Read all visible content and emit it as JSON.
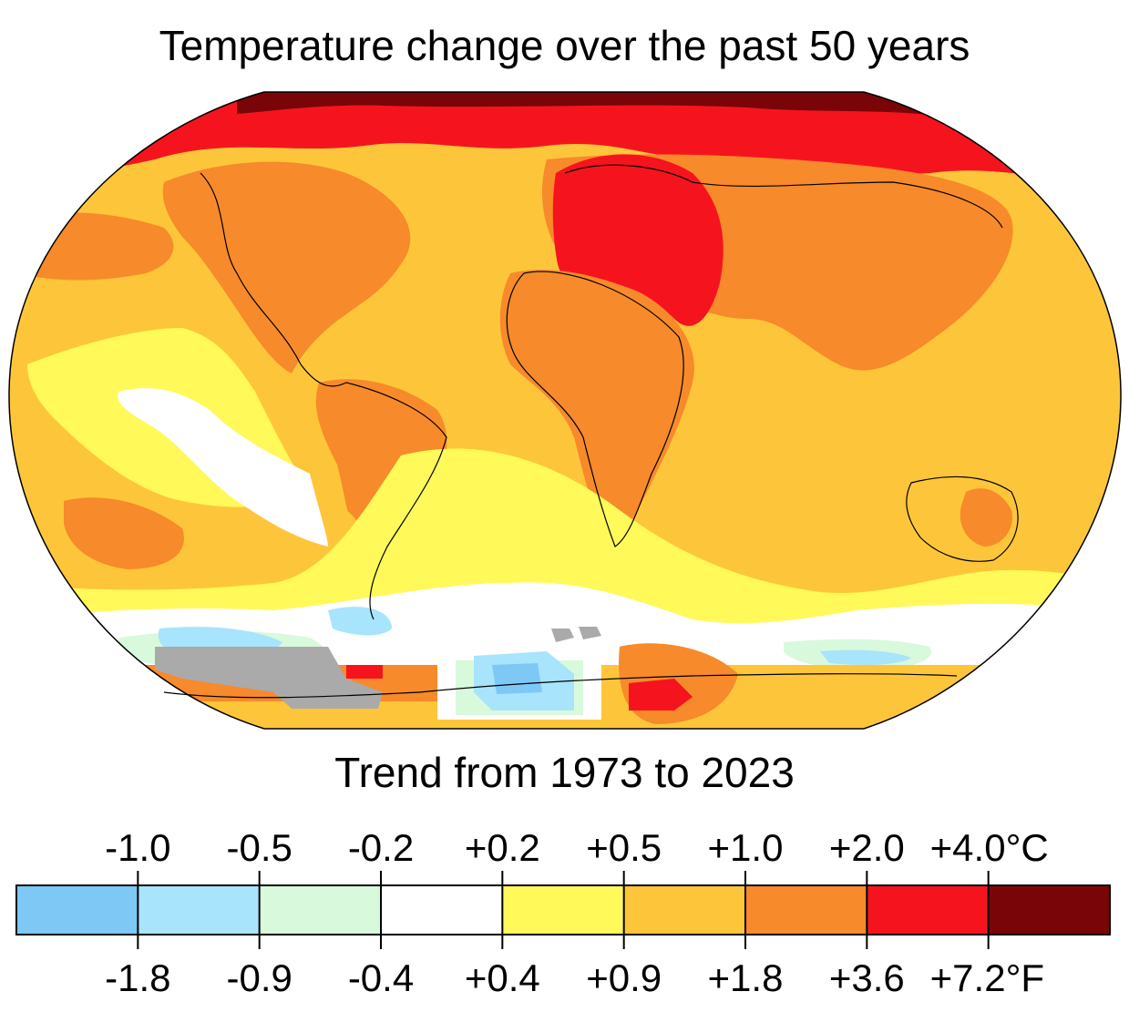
{
  "title": "Temperature change over the past 50 years",
  "subtitle": "Trend from 1973 to 2023",
  "colors": {
    "bin_colors": [
      "#7ec8f5",
      "#a8e4fb",
      "#d9f9dd",
      "#ffffff",
      "#fff95a",
      "#fdc63a",
      "#f78a2a",
      "#f5141e",
      "#7a0508"
    ],
    "no_data": "#aaaaaa",
    "coastline": "#000000"
  },
  "legend": {
    "celsius_labels": [
      "-1.0",
      "-0.5",
      "-0.2",
      "+0.2",
      "+0.5",
      "+1.0",
      "+2.0",
      "+4.0°C"
    ],
    "fahrenheit_labels": [
      "-1.8",
      "-0.9",
      "-0.4",
      "+0.4",
      "+0.9",
      "+1.8",
      "+3.6",
      "+7.2°F"
    ]
  }
}
